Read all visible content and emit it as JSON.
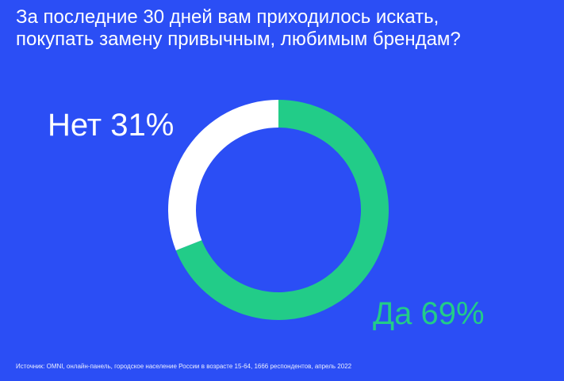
{
  "title": {
    "line1": "За последние 30 дней вам приходилось искать,",
    "line2": "покупать замену привычным, любимым брендам?"
  },
  "labels": {
    "no": "Нет 31%",
    "yes": "Да 69%"
  },
  "source": "Источник: OMNI, онлайн-панель, городское население России в возрасте 15-64, 1666 респондентов, апрель 2022",
  "colors": {
    "background": "#2b4ef5",
    "yes": "#22cc88",
    "no": "#ffffff"
  },
  "chart_data": {
    "type": "pie",
    "donut": true,
    "categories": [
      "Да",
      "Нет"
    ],
    "values": [
      69,
      31
    ],
    "unit": "%"
  }
}
